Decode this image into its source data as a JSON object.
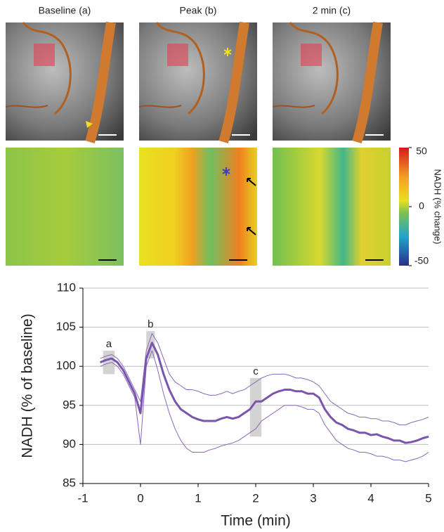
{
  "panels": {
    "titles": [
      "Baseline (a)",
      "Peak (b)",
      "2 min (c)"
    ],
    "colorbar": {
      "label": "NADH (% change)",
      "lim": [
        -50,
        50
      ],
      "ticks": [
        50,
        0,
        -50
      ]
    }
  },
  "chart_data": {
    "type": "line",
    "xlabel": "Time (min)",
    "ylabel": "NADH (% of baseline)",
    "xlim": [
      -1,
      5
    ],
    "ylim": [
      85,
      110
    ],
    "xticks": [
      -1,
      0,
      1,
      2,
      3,
      4,
      5
    ],
    "yticks": [
      85,
      90,
      95,
      100,
      105,
      110
    ],
    "grid": true,
    "x": [
      -0.7,
      -0.6,
      -0.5,
      -0.4,
      -0.3,
      -0.2,
      -0.1,
      0,
      0.1,
      0.2,
      0.3,
      0.4,
      0.5,
      0.6,
      0.7,
      0.8,
      0.9,
      1.0,
      1.1,
      1.2,
      1.3,
      1.4,
      1.5,
      1.6,
      1.7,
      1.8,
      1.9,
      2.0,
      2.1,
      2.2,
      2.3,
      2.4,
      2.5,
      2.6,
      2.7,
      2.8,
      2.9,
      3.0,
      3.1,
      3.2,
      3.3,
      3.4,
      3.5,
      3.6,
      3.7,
      3.8,
      3.9,
      4.0,
      4.1,
      4.2,
      4.3,
      4.4,
      4.5,
      4.6,
      4.7,
      4.8,
      4.9,
      5.0
    ],
    "series": [
      {
        "color": "#8b68b8",
        "width": 1,
        "values": [
          101,
          101.3,
          101.5,
          101,
          100,
          98.5,
          97,
          95.5,
          102,
          104.2,
          103,
          101,
          99,
          98,
          97.5,
          97,
          97,
          96.8,
          96.5,
          96.3,
          96.3,
          96.5,
          96.8,
          96.5,
          96.8,
          97,
          97.5,
          98,
          98.5,
          98.8,
          99,
          99,
          99,
          98.8,
          98.5,
          98.5,
          98.3,
          98,
          97.5,
          96.5,
          95.5,
          95,
          94.5,
          94,
          93.8,
          93.5,
          93.5,
          93.3,
          93.3,
          93,
          93,
          92.8,
          92.5,
          92.5,
          92.8,
          93,
          93.2,
          93.5
        ]
      },
      {
        "color": "#8b68b8",
        "width": 1,
        "values": [
          100,
          100.3,
          100.5,
          100,
          99,
          97.5,
          96,
          90,
          100,
          102,
          99.5,
          96.5,
          94,
          92,
          90.5,
          89.5,
          89,
          89,
          89,
          89.3,
          89.5,
          89.8,
          90,
          90.2,
          90.5,
          91,
          91.5,
          92,
          93,
          93.5,
          94,
          94.5,
          95,
          95,
          95,
          94.8,
          94.5,
          94.5,
          94,
          92.5,
          91.5,
          90.5,
          90,
          89.5,
          89.3,
          89,
          89,
          88.8,
          88.5,
          88.5,
          88.3,
          88,
          88,
          87.8,
          88,
          88.2,
          88.5,
          89
        ]
      },
      {
        "color": "#7a55ad",
        "width": 3,
        "values": [
          100.5,
          100.8,
          101,
          100.5,
          99.5,
          98,
          96.5,
          94,
          101,
          103,
          101.5,
          99,
          97,
          95.5,
          94.5,
          94,
          93.5,
          93.2,
          93,
          93,
          93,
          93.3,
          93.5,
          93.3,
          93.5,
          94,
          94.5,
          95.5,
          95.5,
          96,
          96.5,
          96.8,
          97,
          97,
          96.8,
          96.8,
          96.5,
          96.5,
          96,
          94.5,
          93.5,
          92.8,
          92.5,
          92,
          91.8,
          91.5,
          91.5,
          91.2,
          91.3,
          91,
          90.8,
          90.5,
          90.5,
          90.2,
          90.3,
          90.5,
          90.8,
          91
        ]
      }
    ],
    "annotations": [
      {
        "text": "a",
        "x": [
          -0.65,
          -0.45
        ],
        "y": [
          99,
          102
        ]
      },
      {
        "text": "b",
        "x": [
          0.1,
          0.25
        ],
        "y": [
          101,
          104.5
        ]
      },
      {
        "text": "c",
        "x": [
          1.9,
          2.1
        ],
        "y": [
          91,
          98.5
        ]
      }
    ]
  }
}
